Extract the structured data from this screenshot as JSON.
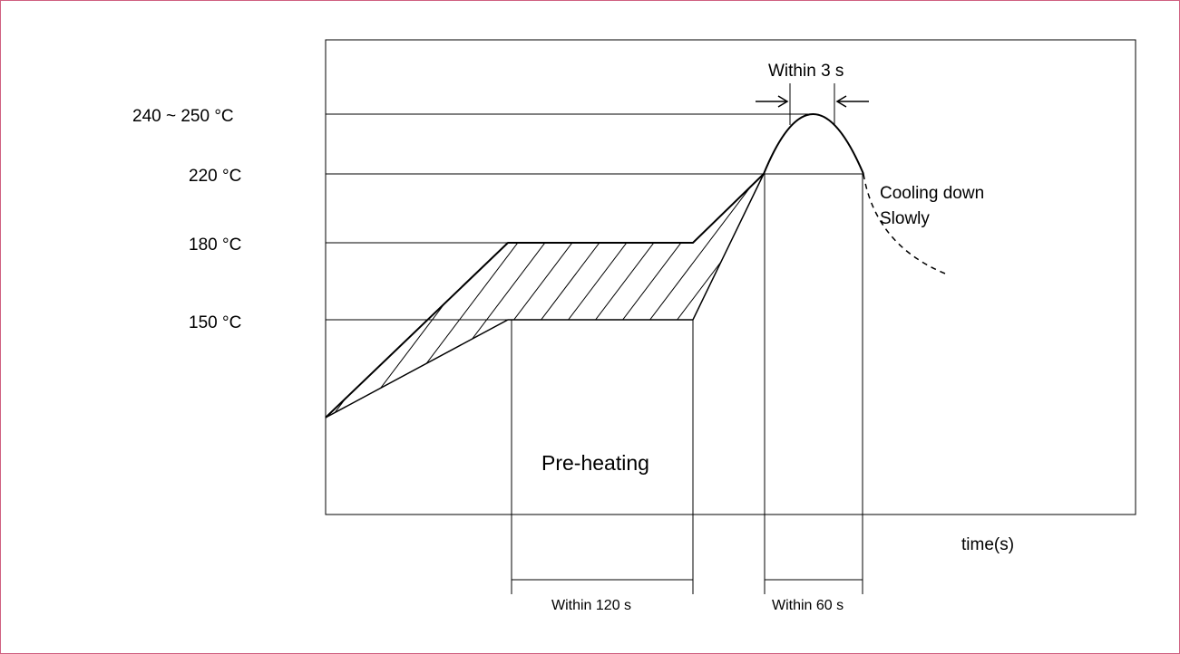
{
  "temperatures": {
    "peak": "240 ~ 250 °C",
    "t220": "220 °C",
    "t180": "180 °C",
    "t150": "150 °C"
  },
  "annotations": {
    "peak_time": "Within 3 s",
    "cooling_line1": "Cooling down",
    "cooling_line2": "Slowly",
    "preheating": "Pre-heating",
    "x_axis": "time(s)",
    "preheat_time": "Within 120 s",
    "reflow_time": "Within 60 s"
  },
  "colors": {
    "border": "#d06080",
    "line": "#000000"
  }
}
